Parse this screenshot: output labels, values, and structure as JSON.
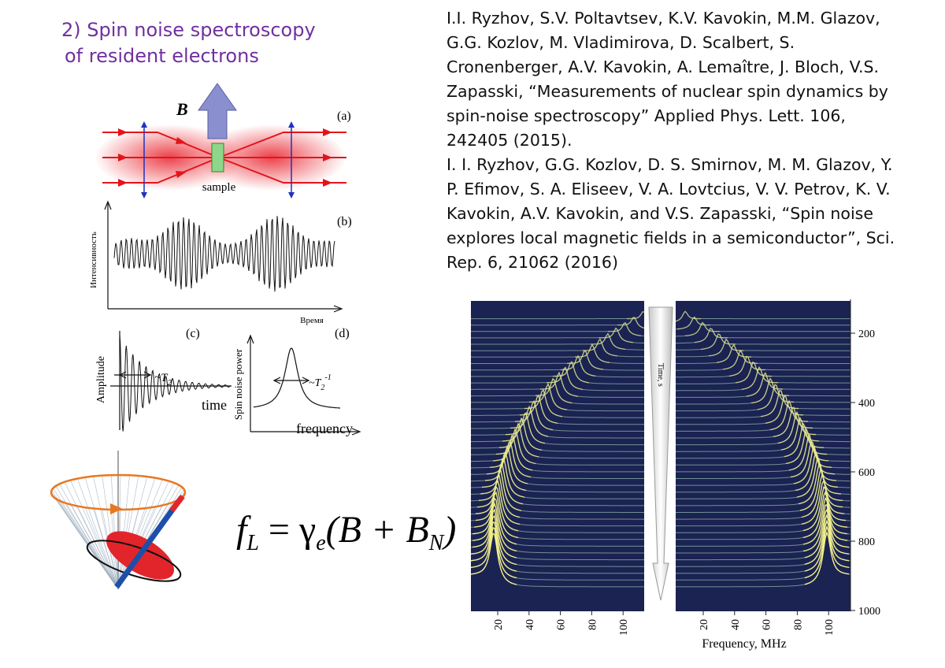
{
  "title": [
    "2) Spin noise spectroscopy",
    "of resident electrons"
  ],
  "references": [
    "I.I. Ryzhov, S.V. Poltavtsev, K.V. Kavokin, M.M. Glazov, G.G. Kozlov, M. Vladimirova, D. Scalbert, S. Cronenberger, A.V. Kavokin, A. Lemaître, J. Bloch, V.S. Zapasski, “Measurements of nuclear spin dynamics by spin-noise spectroscopy” Applied Phys. Lett. 106, 242405 (2015).",
    "I. I. Ryzhov, G.G. Kozlov, D. S. Smirnov, M. M. Glazov, Y. P. Efimov, S. A. Eliseev, V. A. Lovtcius, V. V. Petrov, K. V. Kavokin, A.V. Kavokin, and V.S. Zapasski, “Spin noise explores local magnetic fields in a semiconductor”, Sci. Rep. 6, 21062 (2016)"
  ],
  "schematic": {
    "field_label": "B",
    "panel_a": "(a)",
    "sample_label": "sample",
    "panel_b": "(b)",
    "b_y_label": "Интенсивность",
    "b_x_label": "Время",
    "panel_c": "(c)",
    "c_y_label": "Amplitude",
    "c_width": {
      "main": "~T",
      "sub": "2"
    },
    "c_x_label": "time",
    "panel_d": "(d)",
    "d_y_label": "Spin noise power",
    "d_width": {
      "main": "~T",
      "sub": "2",
      "sup": "-1"
    },
    "d_x_label": "frequency"
  },
  "formula": {
    "f": "f",
    "f_sub": "L",
    "eq": " = γ",
    "gamma_sub": "e",
    "body": "(B + B",
    "b_sub": "N",
    "close": ")"
  },
  "spectra": {
    "time_label": "Time, s",
    "time_ticks": [
      200,
      400,
      600,
      800,
      1000
    ],
    "freq_ticks": [
      20,
      40,
      60,
      80,
      100
    ],
    "freq_label": "Frequency, MHz"
  }
}
